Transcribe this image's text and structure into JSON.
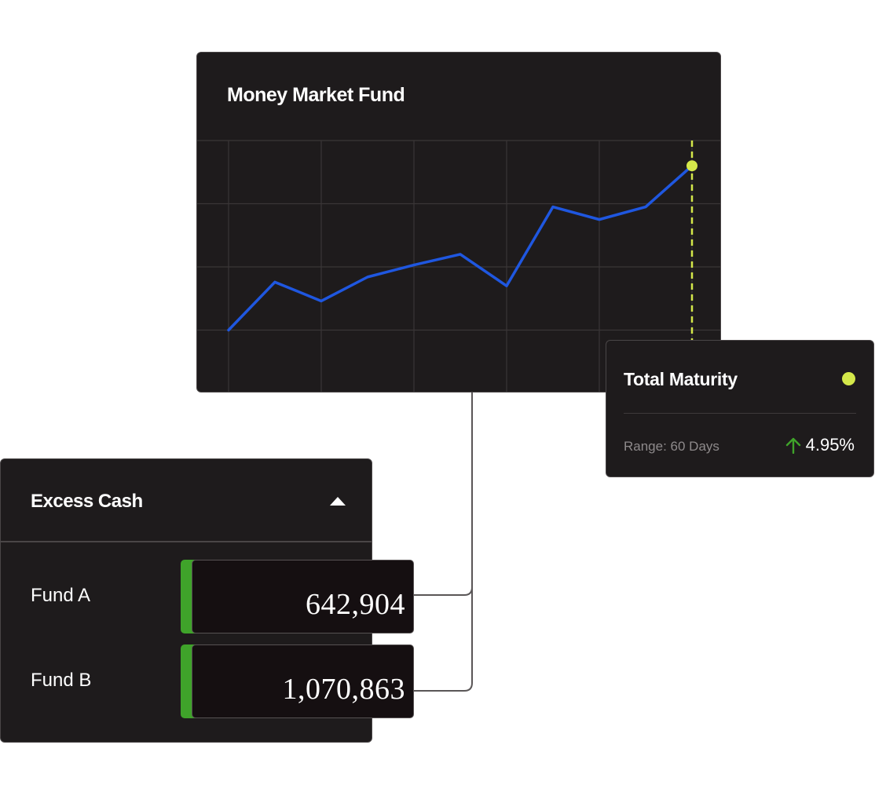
{
  "colors": {
    "card_bg": "#1e1b1c",
    "line": "#1f57e0",
    "marker": "#d4e84a",
    "accent_green": "#3fa32a",
    "arrow_green": "#3fa32a"
  },
  "money_market_fund": {
    "title": "Money Market Fund"
  },
  "chart_data": {
    "type": "line",
    "title": "Money Market Fund",
    "xlabel": "",
    "ylabel": "",
    "grid": true,
    "x": [
      1,
      2,
      3,
      4,
      5,
      6,
      7,
      8,
      9,
      10,
      11
    ],
    "ylim": [
      0,
      4
    ],
    "series": [
      {
        "values": [
          1.0,
          1.76,
          1.46,
          1.84,
          2.03,
          2.2,
          1.7,
          2.95,
          2.75,
          2.95,
          3.6
        ]
      }
    ],
    "highlight_index": 10
  },
  "total_maturity": {
    "title": "Total Maturity",
    "range_label": "Range: 60 Days",
    "change": "4.95%",
    "change_direction": "up-arrow-icon"
  },
  "excess_cash": {
    "title": "Excess Cash",
    "toggle_icon": "caret-up-icon",
    "funds": [
      {
        "label": "Fund A",
        "value": "642,904"
      },
      {
        "label": "Fund B",
        "value": "1,070,863"
      }
    ]
  }
}
